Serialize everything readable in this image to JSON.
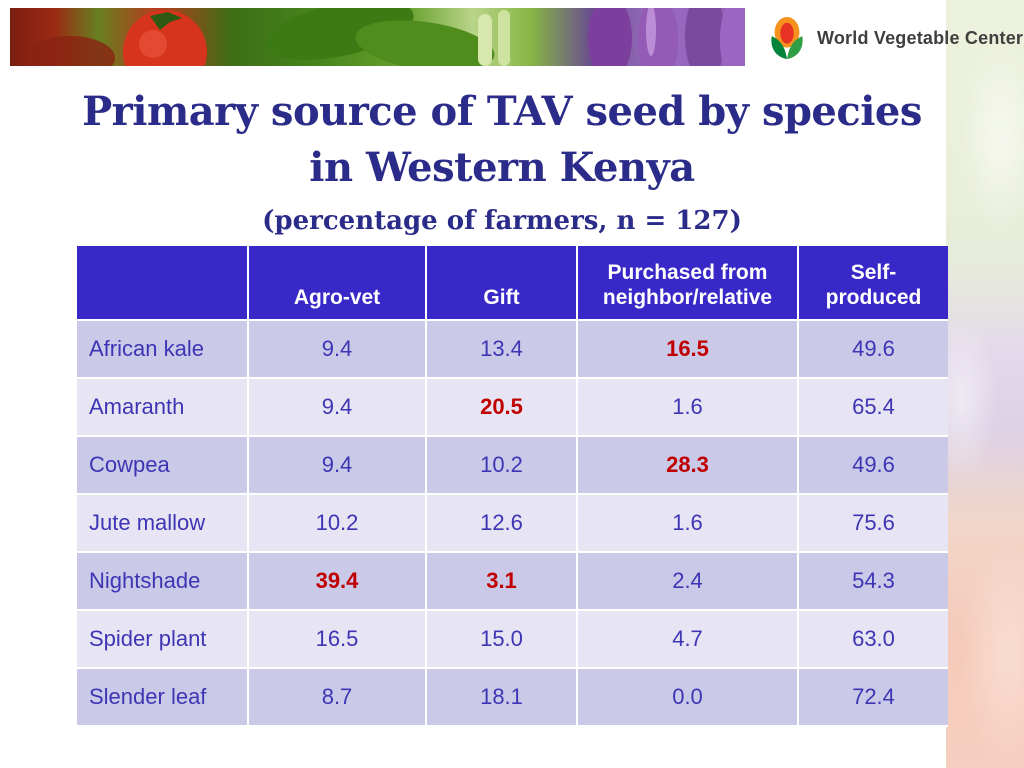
{
  "logo": {
    "text": "World Vegetable Center"
  },
  "title": {
    "line1": "Primary source of TAV seed by species",
    "line2": "in Western Kenya",
    "subtitle": "(percentage of farmers, n = 127)"
  },
  "table": {
    "columns": [
      "",
      "Agro-vet",
      "Gift",
      "Purchased from neighbor/relative",
      "Self-produced"
    ],
    "rows": [
      {
        "species": "African kale",
        "values": [
          "9.4",
          "13.4",
          "16.5",
          "49.6"
        ],
        "highlighted": [
          2
        ]
      },
      {
        "species": "Amaranth",
        "values": [
          "9.4",
          "20.5",
          "1.6",
          "65.4"
        ],
        "highlighted": [
          1
        ]
      },
      {
        "species": "Cowpea",
        "values": [
          "9.4",
          "10.2",
          "28.3",
          "49.6"
        ],
        "highlighted": [
          2
        ]
      },
      {
        "species": "Jute mallow",
        "values": [
          "10.2",
          "12.6",
          "1.6",
          "75.6"
        ],
        "highlighted": []
      },
      {
        "species": "Nightshade",
        "values": [
          "39.4",
          "3.1",
          "2.4",
          "54.3"
        ],
        "highlighted": [
          0,
          1
        ]
      },
      {
        "species": "Spider plant",
        "values": [
          "16.5",
          "15.0",
          "4.7",
          "63.0"
        ],
        "highlighted": []
      },
      {
        "species": "Slender leaf",
        "values": [
          "8.7",
          "18.1",
          "0.0",
          "72.4"
        ],
        "highlighted": []
      }
    ]
  },
  "colors": {
    "header_bg": "#3828C8",
    "header_text": "#FFFFFF",
    "row_dark": "#CBC9E8",
    "row_light": "#E7E5F3",
    "cell_text": "#3E35B5",
    "highlight_red": "#C00000",
    "title_color": "#2B2B8A",
    "logo_text": "#3F3F3F"
  }
}
